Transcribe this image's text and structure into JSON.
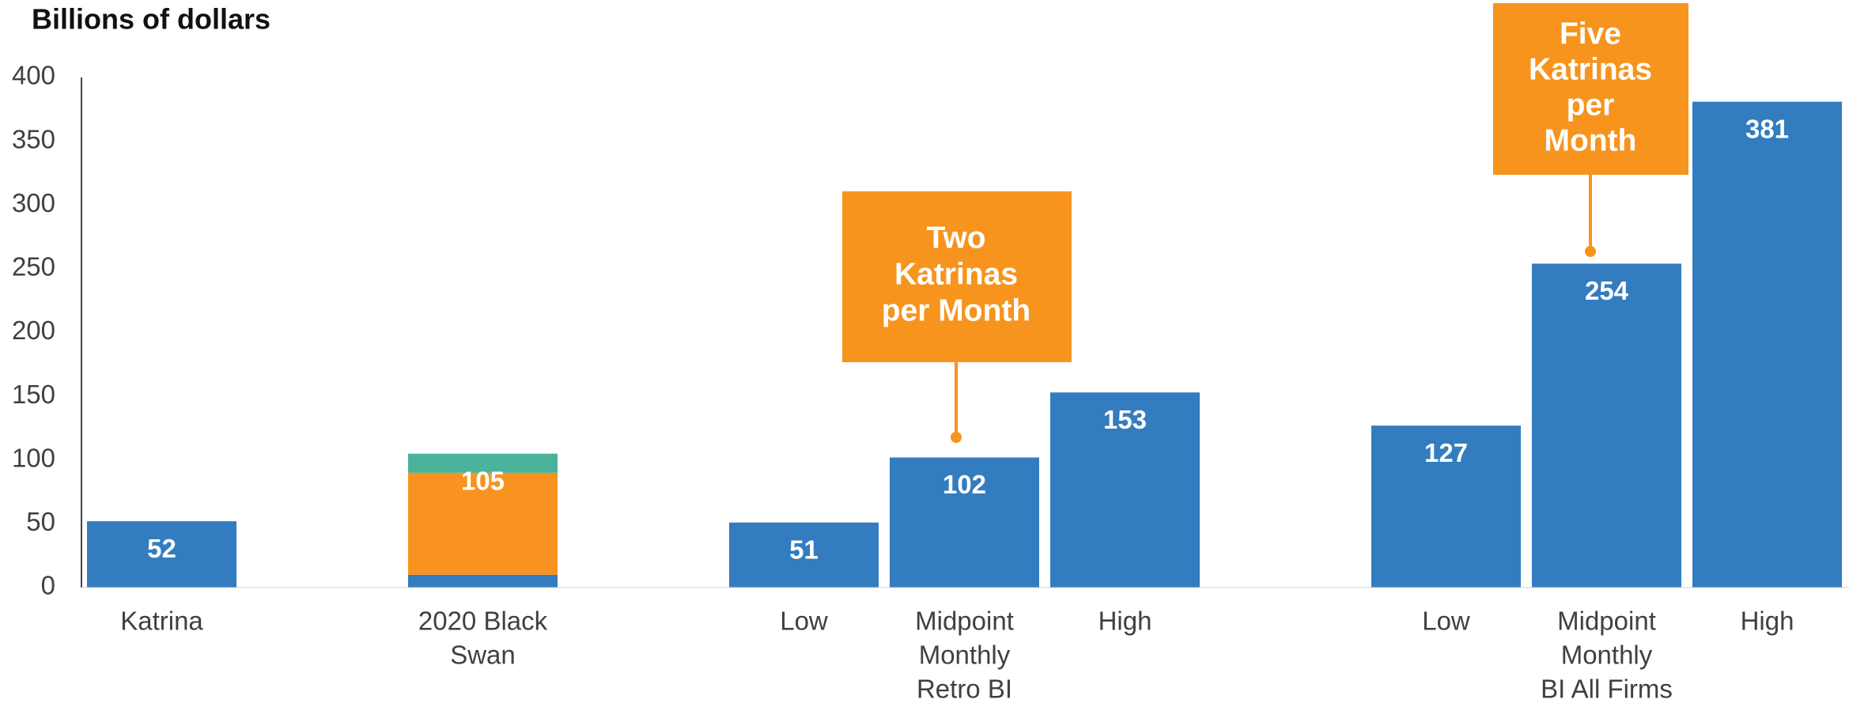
{
  "chart_data": {
    "type": "bar",
    "stacked": true,
    "title": "Billions of dollars",
    "categories": [
      [
        "Katrina"
      ],
      null,
      [
        "2020 Black",
        "Swan"
      ],
      null,
      [
        "Low"
      ],
      [
        "Midpoint",
        "Monthly",
        "Retro BI"
      ],
      [
        "High"
      ],
      null,
      [
        "Low"
      ],
      [
        "Midpoint",
        "Monthly",
        "BI All Firms"
      ],
      [
        "High"
      ]
    ],
    "series": [
      {
        "color": "#337cbf",
        "values": [
          52,
          null,
          10,
          null,
          51,
          102,
          153,
          null,
          127,
          254,
          381
        ]
      },
      {
        "color": "#f7931e",
        "values": [
          null,
          null,
          80,
          null,
          null,
          null,
          null,
          null,
          null,
          null,
          null
        ]
      },
      {
        "color": "#4bb39b",
        "values": [
          null,
          null,
          15,
          null,
          null,
          null,
          null,
          null,
          null,
          null,
          null
        ]
      }
    ],
    "data_labels": [
      52,
      null,
      105,
      null,
      51,
      102,
      153,
      null,
      127,
      254,
      381
    ],
    "annotations": [
      {
        "lines": [
          "Two",
          "Katrinas",
          "per Month"
        ],
        "color": "#f7941d"
      },
      {
        "lines": [
          "Five",
          "Katrinas",
          "per",
          "Month"
        ],
        "color": "#f7941d"
      }
    ],
    "ylim": [
      0,
      400
    ],
    "yticks": [
      0,
      50,
      100,
      150,
      200,
      250,
      300,
      350,
      400
    ]
  }
}
